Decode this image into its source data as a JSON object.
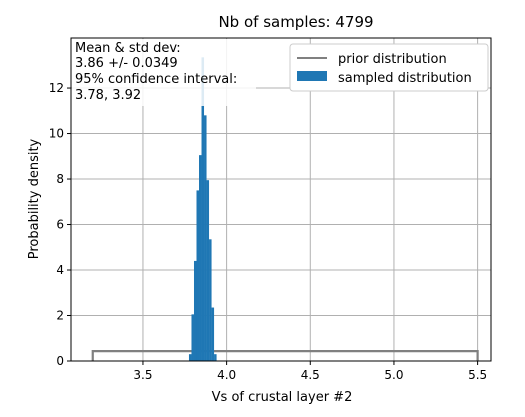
{
  "chart_data": {
    "type": "bar",
    "title": "Nb of samples: 4799",
    "xlabel": "Vs of crustal layer #2",
    "ylabel": "Probability density",
    "xlim": [
      3.07,
      5.58
    ],
    "ylim": [
      0,
      14.2
    ],
    "x_ticks": [
      3.5,
      4.0,
      4.5,
      5.0,
      5.5
    ],
    "x_tick_labels": [
      "3.5",
      "4.0",
      "4.5",
      "5.0",
      "5.5"
    ],
    "y_ticks": [
      0,
      2,
      4,
      6,
      8,
      10,
      12
    ],
    "y_tick_labels": [
      "0",
      "2",
      "4",
      "6",
      "8",
      "10",
      "12"
    ],
    "grid": true,
    "legend": {
      "placement": "top-right",
      "entries": [
        {
          "label": "prior distribution",
          "color": "#808080",
          "kind": "line"
        },
        {
          "label": "sampled distribution",
          "color": "#1f77b4",
          "kind": "patch"
        }
      ]
    },
    "annotation": {
      "lines": [
        "Mean & std dev:",
        "3.86 +/- 0.0349",
        "95% confidence interval:",
        "3.78, 3.92"
      ]
    },
    "prior": {
      "name": "prior distribution",
      "type": "uniform",
      "range": [
        3.2,
        5.5
      ],
      "density": 0.435,
      "color": "#808080"
    },
    "sampled": {
      "name": "sampled distribution",
      "color": "#1f77b4",
      "bins": [
        {
          "x0": 3.775,
          "x1": 3.79,
          "density": 0.3
        },
        {
          "x0": 3.79,
          "x1": 3.805,
          "density": 2.05
        },
        {
          "x0": 3.805,
          "x1": 3.82,
          "density": 4.4
        },
        {
          "x0": 3.82,
          "x1": 3.835,
          "density": 7.5
        },
        {
          "x0": 3.835,
          "x1": 3.85,
          "density": 9.05
        },
        {
          "x0": 3.85,
          "x1": 3.865,
          "density": 13.35
        },
        {
          "x0": 3.865,
          "x1": 3.88,
          "density": 10.8
        },
        {
          "x0": 3.88,
          "x1": 3.895,
          "density": 7.95
        },
        {
          "x0": 3.895,
          "x1": 3.91,
          "density": 5.35
        },
        {
          "x0": 3.91,
          "x1": 3.925,
          "density": 2.35
        },
        {
          "x0": 3.925,
          "x1": 3.94,
          "density": 0.3
        }
      ]
    }
  }
}
